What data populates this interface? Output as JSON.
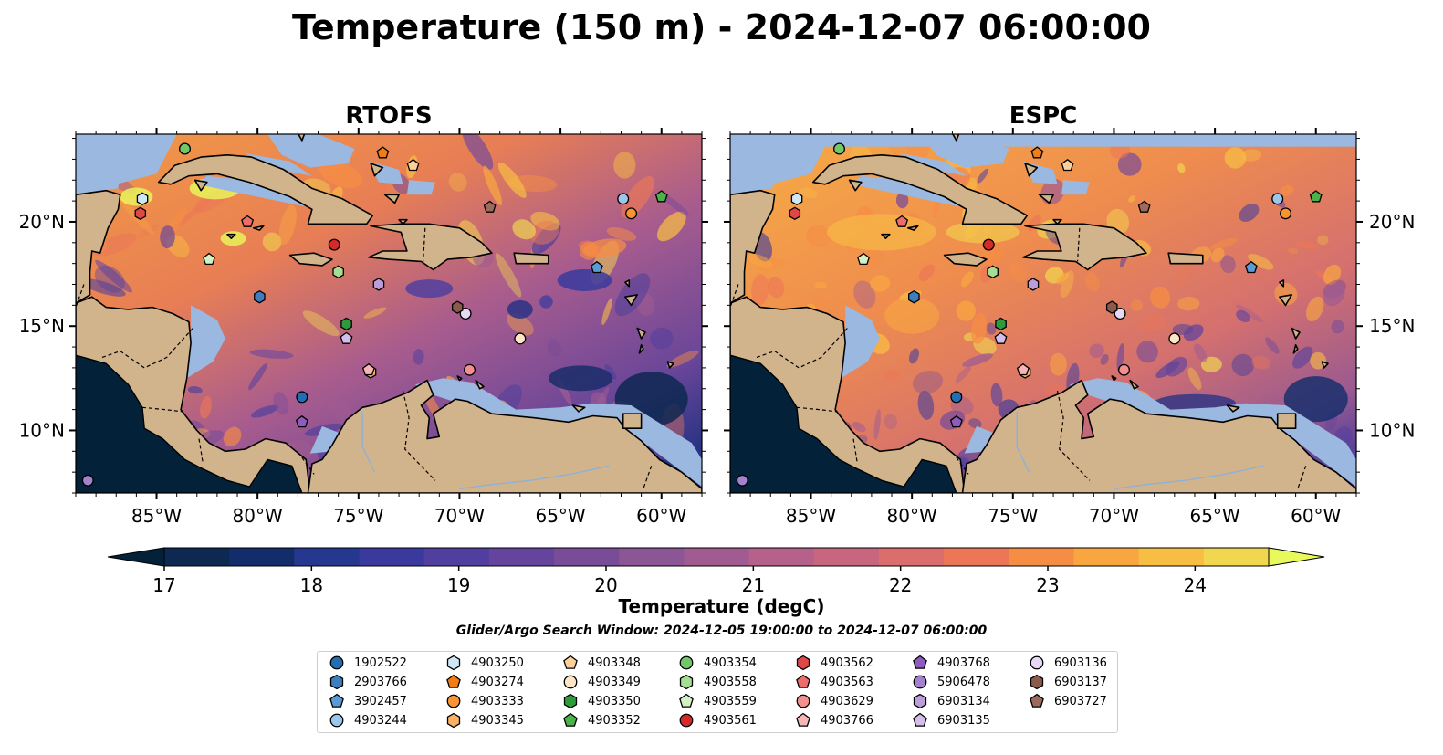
{
  "title": "Temperature (150 m) - 2024-12-07 06:00:00",
  "panels": [
    {
      "title": "RTOFS",
      "model": "rtofs"
    },
    {
      "title": "ESPC",
      "model": "espc"
    }
  ],
  "map": {
    "lon_range": [
      -89,
      -58
    ],
    "lat_range": [
      7,
      24.2
    ],
    "lon_ticks": [
      -85,
      -80,
      -75,
      -70,
      -65,
      -60
    ],
    "lon_tick_labels": [
      "85°W",
      "80°W",
      "75°W",
      "70°W",
      "65°W",
      "60°W"
    ],
    "lat_ticks": [
      10,
      15,
      20
    ],
    "lat_tick_labels": [
      "10°N",
      "15°N",
      "20°N"
    ],
    "land_color": "#d2b48c",
    "shallow_water_color": "#9bb8e0"
  },
  "colorbar": {
    "label": "Temperature (degC)",
    "min": 17,
    "max": 24.5,
    "ticks": [
      17,
      18,
      19,
      20,
      21,
      22,
      23,
      24
    ],
    "tick_labels": [
      "17",
      "18",
      "19",
      "20",
      "21",
      "22",
      "23",
      "24"
    ],
    "under_color": "#03223a",
    "over_color": "#e8fa5b",
    "colors": [
      "#0d2851",
      "#122d6a",
      "#25378f",
      "#3a3a9e",
      "#503f9f",
      "#64449c",
      "#794c98",
      "#8b5596",
      "#a05c91",
      "#b56189",
      "#c8667f",
      "#db6d6c",
      "#ec7756",
      "#f68d44",
      "#f9a641",
      "#f8be44",
      "#f1d64f"
    ]
  },
  "search_window": "Glider/Argo Search Window: 2024-12-05 19:00:00 to 2024-12-07 06:00:00",
  "legend": [
    {
      "id": "1902522",
      "marker": "circle",
      "color": "#1f6fb4"
    },
    {
      "id": "2903766",
      "marker": "hexagon",
      "color": "#3d7ebf"
    },
    {
      "id": "3902457",
      "marker": "pentagon",
      "color": "#5a9bd5"
    },
    {
      "id": "4903244",
      "marker": "circle",
      "color": "#9cc6ea"
    },
    {
      "id": "4903250",
      "marker": "hexagon",
      "color": "#cfe6f7"
    },
    {
      "id": "4903274",
      "marker": "pentagon",
      "color": "#f07d17"
    },
    {
      "id": "4903333",
      "marker": "circle",
      "color": "#f99433"
    },
    {
      "id": "4903345",
      "marker": "hexagon",
      "color": "#fbb163"
    },
    {
      "id": "4903348",
      "marker": "pentagon",
      "color": "#fcd09a"
    },
    {
      "id": "4903349",
      "marker": "circle",
      "color": "#fde5c8"
    },
    {
      "id": "4903350",
      "marker": "hexagon",
      "color": "#2d9a3c"
    },
    {
      "id": "4903352",
      "marker": "pentagon",
      "color": "#4bb34a"
    },
    {
      "id": "4903354",
      "marker": "circle",
      "color": "#72c868"
    },
    {
      "id": "4903558",
      "marker": "hexagon",
      "color": "#a5dd93"
    },
    {
      "id": "4903559",
      "marker": "pentagon",
      "color": "#d3f2c4"
    },
    {
      "id": "4903561",
      "marker": "circle",
      "color": "#d62a2a"
    },
    {
      "id": "4903562",
      "marker": "hexagon",
      "color": "#e04848"
    },
    {
      "id": "4903563",
      "marker": "pentagon",
      "color": "#ed6d6d"
    },
    {
      "id": "4903629",
      "marker": "circle",
      "color": "#f48f8f"
    },
    {
      "id": "4903766",
      "marker": "pentagon",
      "color": "#f7b6b6"
    },
    {
      "id": "4903768",
      "marker": "pentagon",
      "color": "#8e5cbf"
    },
    {
      "id": "5906478",
      "marker": "circle",
      "color": "#a481cc"
    },
    {
      "id": "6903134",
      "marker": "hexagon",
      "color": "#bc9ddb"
    },
    {
      "id": "6903135",
      "marker": "pentagon",
      "color": "#d3bdea"
    },
    {
      "id": "6903136",
      "marker": "circle",
      "color": "#e8d7f5"
    },
    {
      "id": "6903137",
      "marker": "hexagon",
      "color": "#8a5a4a"
    },
    {
      "id": "6903727",
      "marker": "pentagon",
      "color": "#9c6b5b"
    }
  ],
  "floats": [
    {
      "id": "1902522",
      "lon": -77.8,
      "lat": 11.6
    },
    {
      "id": "2903766",
      "lon": -79.9,
      "lat": 16.4
    },
    {
      "id": "3902457",
      "lon": -63.2,
      "lat": 17.8
    },
    {
      "id": "4903244",
      "lon": -61.9,
      "lat": 21.1
    },
    {
      "id": "4903250",
      "lon": -85.7,
      "lat": 21.1
    },
    {
      "id": "4903274",
      "lon": -73.8,
      "lat": 23.3
    },
    {
      "id": "4903333",
      "lon": -61.5,
      "lat": 20.4
    },
    {
      "id": "4903345",
      "lon": -74.4,
      "lat": 12.8
    },
    {
      "id": "4903348",
      "lon": -72.3,
      "lat": 22.7
    },
    {
      "id": "4903349",
      "lon": -67.0,
      "lat": 14.4
    },
    {
      "id": "4903350",
      "lon": -75.6,
      "lat": 15.1
    },
    {
      "id": "4903352",
      "lon": -60.0,
      "lat": 21.2
    },
    {
      "id": "4903354",
      "lon": -83.6,
      "lat": 23.5
    },
    {
      "id": "4903558",
      "lon": -76.0,
      "lat": 17.6
    },
    {
      "id": "4903559",
      "lon": -82.4,
      "lat": 18.2
    },
    {
      "id": "4903561",
      "lon": -76.2,
      "lat": 18.9
    },
    {
      "id": "4903562",
      "lon": -85.8,
      "lat": 20.4
    },
    {
      "id": "4903563",
      "lon": -80.5,
      "lat": 20.0
    },
    {
      "id": "4903629",
      "lon": -69.5,
      "lat": 12.9
    },
    {
      "id": "4903766",
      "lon": -74.5,
      "lat": 12.9
    },
    {
      "id": "4903768",
      "lon": -77.8,
      "lat": 10.4
    },
    {
      "id": "5906478",
      "lon": -88.4,
      "lat": 7.6
    },
    {
      "id": "6903134",
      "lon": -74.0,
      "lat": 17.0
    },
    {
      "id": "6903135",
      "lon": -75.6,
      "lat": 14.4
    },
    {
      "id": "6903136",
      "lon": -69.7,
      "lat": 15.6
    },
    {
      "id": "6903137",
      "lon": -70.1,
      "lat": 15.9
    },
    {
      "id": "6903727",
      "lon": -68.5,
      "lat": 20.7
    }
  ]
}
